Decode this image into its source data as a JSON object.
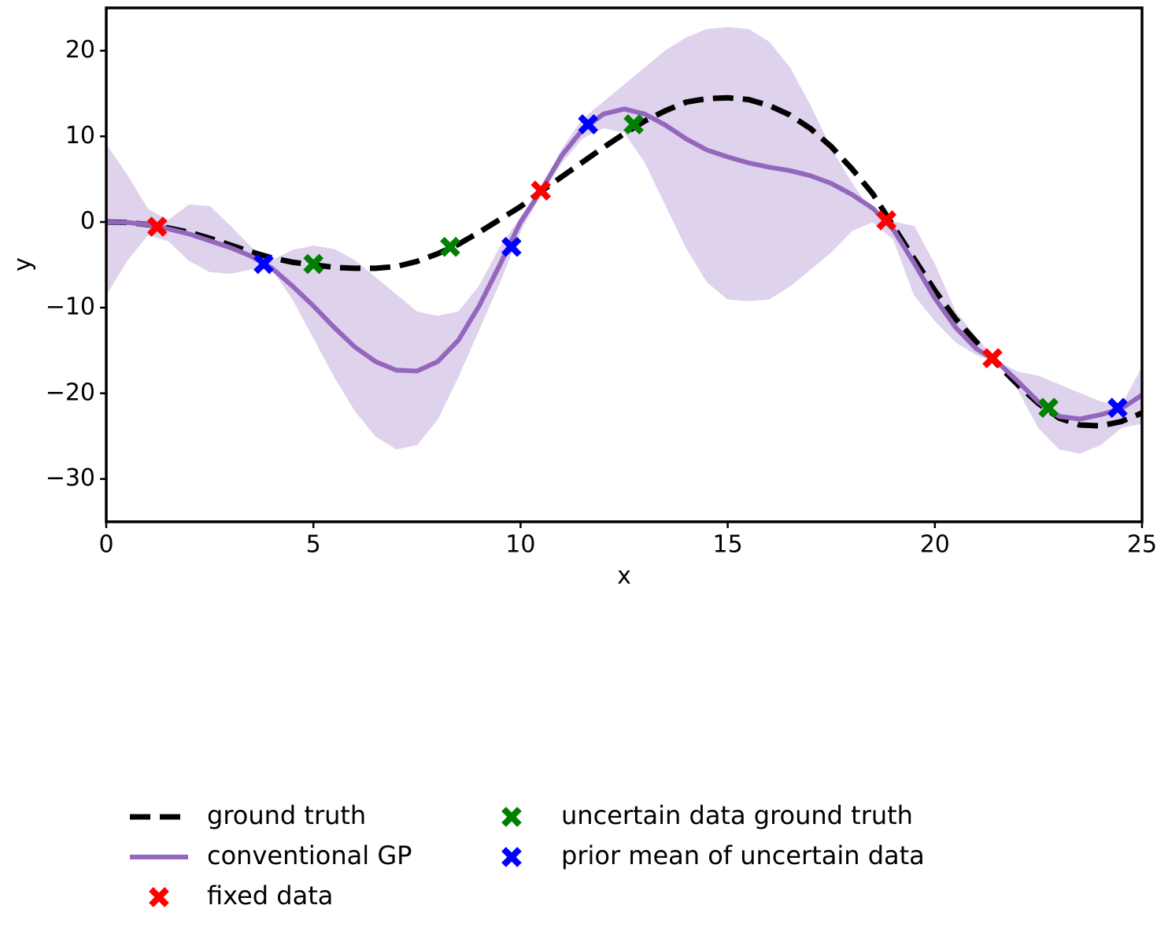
{
  "chart_data": {
    "type": "line",
    "xlabel": "x",
    "ylabel": "y",
    "xlim": [
      0,
      25
    ],
    "ylim": [
      -35,
      25
    ],
    "xticks": [
      0,
      5,
      10,
      15,
      20,
      25
    ],
    "yticks": [
      {
        "value": -30,
        "label": "−30"
      },
      {
        "value": -20,
        "label": "−20"
      },
      {
        "value": -10,
        "label": "−10"
      },
      0,
      10,
      20
    ],
    "x": [
      0,
      0.5,
      1,
      1.5,
      2,
      2.5,
      3,
      3.5,
      4,
      4.5,
      5,
      5.5,
      6,
      6.5,
      7,
      7.5,
      8,
      8.5,
      9,
      9.5,
      10,
      10.5,
      11,
      11.5,
      12,
      12.5,
      13,
      13.5,
      14,
      14.5,
      15,
      15.5,
      16,
      16.5,
      17,
      17.5,
      18,
      18.5,
      19,
      19.5,
      20,
      20.5,
      21,
      21.5,
      22,
      22.5,
      23,
      23.5,
      24,
      24.5,
      25
    ],
    "series": [
      {
        "name": "ground truth",
        "color": "#000000",
        "dashed": true,
        "values": [
          0,
          -0.05,
          -0.3,
          -0.7,
          -1.2,
          -1.9,
          -2.7,
          -3.5,
          -4.2,
          -4.7,
          -5.0,
          -5.3,
          -5.4,
          -5.4,
          -5.2,
          -4.6,
          -3.7,
          -2.6,
          -1.2,
          0.3,
          1.8,
          3.6,
          5.3,
          7.0,
          8.7,
          10.3,
          11.8,
          13.0,
          14.0,
          14.4,
          14.5,
          14.3,
          13.6,
          12.5,
          10.9,
          8.8,
          6.2,
          3.3,
          -0.5,
          -4.3,
          -8.0,
          -11.3,
          -14.0,
          -16.6,
          -19.0,
          -21.2,
          -22.9,
          -23.7,
          -23.8,
          -23.3,
          -22.3
        ]
      },
      {
        "name": "conventional GP",
        "color": "#9467bd",
        "dashed": false,
        "band_color": "#dfd2ec",
        "values": [
          0,
          -0.05,
          -0.3,
          -0.8,
          -1.4,
          -2.2,
          -3.0,
          -4.0,
          -5.4,
          -7.5,
          -9.8,
          -12.3,
          -14.6,
          -16.3,
          -17.3,
          -17.4,
          -16.3,
          -13.8,
          -9.8,
          -5.0,
          0,
          3.7,
          7.8,
          10.8,
          12.6,
          13.2,
          12.6,
          11.3,
          9.7,
          8.4,
          7.6,
          6.9,
          6.4,
          6.0,
          5.4,
          4.5,
          3.2,
          1.6,
          -0.9,
          -4.8,
          -8.9,
          -12.3,
          -14.8,
          -16.3,
          -18.6,
          -21.0,
          -22.7,
          -23.0,
          -22.5,
          -21.8,
          -20.2
        ],
        "upper": [
          9,
          5.5,
          1.5,
          0.2,
          2,
          1.8,
          -0.5,
          -3,
          -4.5,
          -3.3,
          -2.8,
          -3.2,
          -4.5,
          -6.5,
          -8.5,
          -10.5,
          -11,
          -10.5,
          -7.5,
          -3,
          0.5,
          4,
          8.5,
          12,
          14,
          16,
          18,
          20,
          21.5,
          22.5,
          22.7,
          22.5,
          21,
          18,
          13.5,
          8.5,
          4.5,
          1,
          0,
          -0.5,
          -5,
          -10.5,
          -13.5,
          -16.3,
          -17.5,
          -18,
          -19,
          -20,
          -21,
          -21.5,
          -17
        ],
        "lower": [
          -8.5,
          -4.5,
          -1.5,
          -2.2,
          -4.5,
          -5.8,
          -6,
          -5.5,
          -5.5,
          -9,
          -13.5,
          -18,
          -22,
          -25,
          -26.5,
          -26,
          -23,
          -18,
          -12.5,
          -7,
          -1,
          3.3,
          7,
          9.8,
          11,
          10.5,
          7,
          2,
          -3,
          -7,
          -9,
          -9.2,
          -9,
          -7.5,
          -5.5,
          -3.5,
          -1,
          0,
          -2,
          -8.5,
          -11.5,
          -14,
          -15.5,
          -16.3,
          -19.5,
          -24,
          -26.5,
          -27,
          -26,
          -24,
          -23.5
        ]
      }
    ],
    "points": [
      {
        "name": "fixed data",
        "color": "#ff0000",
        "x": [
          1.23,
          10.49,
          18.83,
          21.39
        ],
        "y": [
          -0.55,
          3.67,
          0.2,
          -15.9
        ]
      },
      {
        "name": "uncertain data ground truth",
        "color": "#008000",
        "x": [
          5.0,
          8.3,
          12.73,
          22.74
        ],
        "y": [
          -4.9,
          -2.9,
          11.4,
          -21.7
        ]
      },
      {
        "name": "prior mean of uncertain data",
        "color": "#0000ff",
        "x": [
          3.8,
          9.78,
          11.63,
          24.41
        ],
        "y": [
          -4.9,
          -2.9,
          11.4,
          -21.7
        ]
      }
    ]
  }
}
